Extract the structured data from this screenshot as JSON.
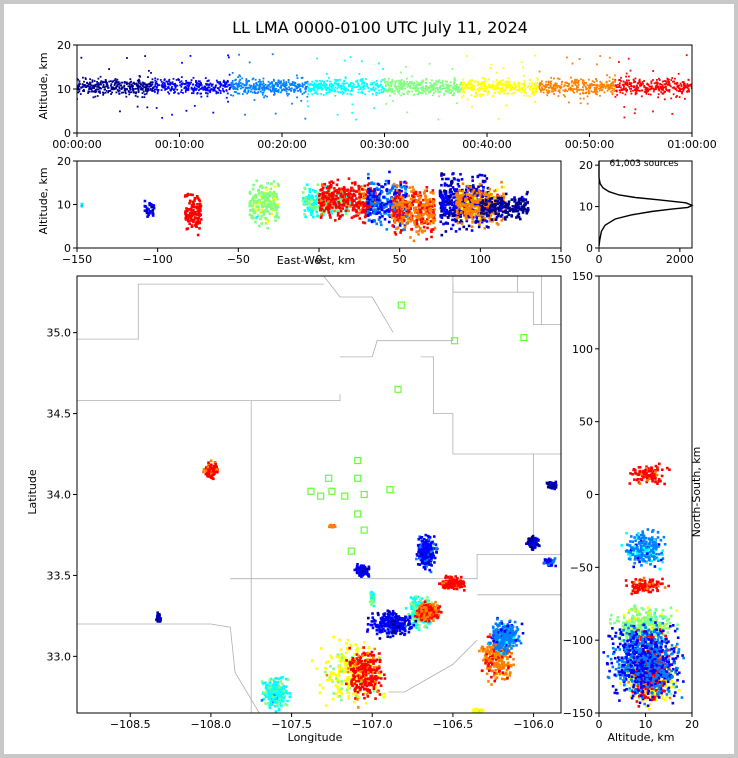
{
  "title": "LL LMA 0000-0100 UTC July 11, 2024",
  "sources_label": "61,003 sources",
  "colormap": [
    "#00008f",
    "#0000ff",
    "#0080ff",
    "#00ffff",
    "#80ff80",
    "#ffff00",
    "#ff8000",
    "#ff0000",
    "#800000"
  ],
  "chart_data": [
    {
      "id": "time_height",
      "type": "scatter",
      "xlabel": "",
      "ylabel": "Altitude, km",
      "xticks": [
        "00:00:00",
        "00:10:00",
        "00:20:00",
        "00:30:00",
        "00:40:00",
        "00:50:00",
        "01:00:00"
      ],
      "xlim": [
        0,
        60
      ],
      "ylim": [
        0,
        20
      ],
      "yticks": [
        0,
        10,
        20
      ],
      "altitude_band_km": [
        5,
        16
      ],
      "time_coloring": "time, minutes 0-60"
    },
    {
      "id": "east_west_altitude",
      "type": "scatter",
      "xlabel": "East-West, km",
      "ylabel": "Altitude, km",
      "xlim": [
        -150,
        150
      ],
      "ylim": [
        0,
        20
      ],
      "xticks": [
        -150,
        -100,
        -50,
        0,
        50,
        100,
        150
      ],
      "yticks": [
        0,
        10,
        20
      ],
      "clusters": [
        {
          "x": [
            -147,
            -147
          ],
          "z": [
            9,
            11
          ],
          "t": 20
        },
        {
          "x": [
            -108,
            -102
          ],
          "z": [
            6,
            12
          ],
          "t": 10
        },
        {
          "x": [
            -83,
            -73
          ],
          "z": [
            2,
            14
          ],
          "t": 58
        },
        {
          "x": [
            -43,
            -25
          ],
          "z": [
            4,
            16
          ],
          "t": 35
        },
        {
          "x": [
            -10,
            20
          ],
          "z": [
            6,
            15
          ],
          "t": 30
        },
        {
          "x": [
            0,
            35
          ],
          "z": [
            5,
            17
          ],
          "t": 55
        },
        {
          "x": [
            30,
            55
          ],
          "z": [
            3,
            18
          ],
          "t": 15
        },
        {
          "x": [
            45,
            72
          ],
          "z": [
            1,
            16
          ],
          "t": 52
        },
        {
          "x": [
            75,
            105
          ],
          "z": [
            2,
            19
          ],
          "t": 8
        },
        {
          "x": [
            85,
            115
          ],
          "z": [
            4,
            16
          ],
          "t": 48
        },
        {
          "x": [
            100,
            130
          ],
          "z": [
            6,
            13
          ],
          "t": 5
        }
      ]
    },
    {
      "id": "source_histogram",
      "type": "line",
      "xlabel": "",
      "ylabel": "",
      "xlim": [
        0,
        2300
      ],
      "ylim": [
        0,
        21
      ],
      "xticks": [
        0,
        2000
      ],
      "yticks": [
        0,
        10,
        20
      ],
      "profile": [
        [
          0,
          0.5
        ],
        [
          20,
          2
        ],
        [
          60,
          4
        ],
        [
          150,
          5.5
        ],
        [
          400,
          7
        ],
        [
          800,
          8
        ],
        [
          1300,
          8.8
        ],
        [
          1800,
          9.4
        ],
        [
          2200,
          9.8
        ],
        [
          2300,
          10.3
        ],
        [
          2150,
          10.9
        ],
        [
          1500,
          11.6
        ],
        [
          900,
          12.2
        ],
        [
          500,
          12.8
        ],
        [
          250,
          13.6
        ],
        [
          100,
          14.5
        ],
        [
          30,
          15.5
        ],
        [
          0,
          17
        ],
        [
          0,
          21
        ]
      ]
    },
    {
      "id": "plan_view",
      "type": "scatter",
      "xlabel": "Longitude",
      "ylabel": "Latitude",
      "xlim": [
        -108.83,
        -105.83
      ],
      "ylim": [
        32.65,
        35.35
      ],
      "xticks": [
        -108.5,
        -108.0,
        -107.5,
        -107.0,
        -106.5,
        -106.0
      ],
      "yticks": [
        33.0,
        33.5,
        34.0,
        34.5,
        35.0
      ],
      "stations": [
        [
          -106.82,
          35.17
        ],
        [
          -106.49,
          34.95
        ],
        [
          -106.06,
          34.97
        ],
        [
          -106.84,
          34.65
        ],
        [
          -107.09,
          34.21
        ],
        [
          -107.27,
          34.1
        ],
        [
          -107.09,
          34.1
        ],
        [
          -107.38,
          34.02
        ],
        [
          -107.25,
          34.02
        ],
        [
          -107.32,
          33.99
        ],
        [
          -107.17,
          33.99
        ],
        [
          -107.05,
          34.0
        ],
        [
          -106.89,
          34.03
        ],
        [
          -107.09,
          33.88
        ],
        [
          -107.05,
          33.78
        ],
        [
          -107.13,
          33.65
        ]
      ],
      "clusters": [
        {
          "lon": [
            -108.05,
            -107.95
          ],
          "lat": [
            34.08,
            34.22
          ],
          "t": 55
        },
        {
          "lon": [
            -107.27,
            -107.22
          ],
          "lat": [
            33.79,
            33.82
          ],
          "t": 50
        },
        {
          "lon": [
            -107.12,
            -107.0
          ],
          "lat": [
            33.48,
            33.58
          ],
          "t": 8
        },
        {
          "lon": [
            -106.75,
            -106.58
          ],
          "lat": [
            33.5,
            33.78
          ],
          "t": 12
        },
        {
          "lon": [
            -106.6,
            -106.4
          ],
          "lat": [
            33.4,
            33.5
          ],
          "t": 55
        },
        {
          "lon": [
            -106.8,
            -106.6
          ],
          "lat": [
            33.15,
            33.4
          ],
          "t": 30
        },
        {
          "lon": [
            -106.75,
            -106.55
          ],
          "lat": [
            33.2,
            33.35
          ],
          "t": 52
        },
        {
          "lon": [
            -107.4,
            -106.85
          ],
          "lat": [
            32.65,
            33.15
          ],
          "t": 40
        },
        {
          "lon": [
            -107.2,
            -106.9
          ],
          "lat": [
            32.7,
            33.1
          ],
          "t": 55
        },
        {
          "lon": [
            -107.05,
            -106.7
          ],
          "lat": [
            33.1,
            33.3
          ],
          "t": 10
        },
        {
          "lon": [
            -107.7,
            -107.5
          ],
          "lat": [
            32.65,
            32.9
          ],
          "t": 28
        },
        {
          "lon": [
            -106.35,
            -106.1
          ],
          "lat": [
            32.8,
            33.2
          ],
          "t": 50
        },
        {
          "lon": [
            -106.3,
            -106.05
          ],
          "lat": [
            33.0,
            33.25
          ],
          "t": 18
        },
        {
          "lon": [
            -106.05,
            -105.95
          ],
          "lat": [
            33.65,
            33.75
          ],
          "t": 8
        },
        {
          "lon": [
            -105.95,
            -105.85
          ],
          "lat": [
            33.55,
            33.62
          ],
          "t": 15
        },
        {
          "lon": [
            -105.92,
            -105.85
          ],
          "lat": [
            34.02,
            34.1
          ],
          "t": 6
        },
        {
          "lon": [
            -108.35,
            -108.3
          ],
          "lat": [
            33.2,
            33.28
          ],
          "t": 6
        },
        {
          "lon": [
            -107.02,
            -106.98
          ],
          "lat": [
            33.3,
            33.42
          ],
          "t": 30
        },
        {
          "lon": [
            -106.4,
            -106.3
          ],
          "lat": [
            32.65,
            32.68
          ],
          "t": 40
        }
      ]
    },
    {
      "id": "altitude_north_south",
      "type": "scatter",
      "xlabel": "Altitude, km",
      "ylabel": "North-South, km",
      "xlim": [
        0,
        20
      ],
      "ylim": [
        -150,
        150
      ],
      "xticks": [
        0,
        10,
        20
      ],
      "yticks": [
        -150,
        -100,
        -50,
        0,
        50,
        100,
        150
      ],
      "clusters": [
        {
          "z": [
            5,
            16
          ],
          "y": [
            5,
            22
          ],
          "t": 55
        },
        {
          "z": [
            4,
            16
          ],
          "y": [
            -55,
            -20
          ],
          "t": 20
        },
        {
          "z": [
            4,
            16
          ],
          "y": [
            -70,
            -55
          ],
          "t": 55
        },
        {
          "z": [
            1,
            18
          ],
          "y": [
            -110,
            -72
          ],
          "t": 35
        },
        {
          "z": [
            3,
            18
          ],
          "y": [
            -150,
            -100
          ],
          "t": 40
        },
        {
          "z": [
            6,
            16
          ],
          "y": [
            -150,
            -85
          ],
          "t": 57
        },
        {
          "z": [
            0,
            20
          ],
          "y": [
            -150,
            -80
          ],
          "t": 15
        }
      ]
    }
  ]
}
